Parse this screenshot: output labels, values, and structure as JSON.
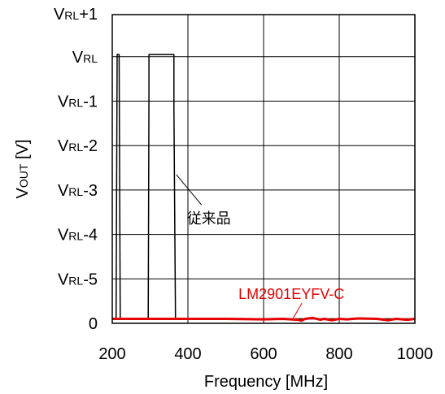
{
  "chart_data": {
    "type": "line",
    "title": "",
    "xlabel": "Frequency  [MHz]",
    "ylabel": {
      "main": "V",
      "sub": "OUT",
      "unit": "  [V]"
    },
    "xlim": [
      200,
      1000
    ],
    "ylim": [
      0,
      6
    ],
    "x_ticks": [
      {
        "value": 200,
        "label": "200"
      },
      {
        "value": 400,
        "label": "400"
      },
      {
        "value": 600,
        "label": "600"
      },
      {
        "value": 800,
        "label": "800"
      },
      {
        "value": 1000,
        "label": "1000"
      }
    ],
    "y_ticks": [
      {
        "value": 0,
        "main": "0",
        "sub": "",
        "suffix": ""
      },
      {
        "value": 1,
        "main": "V",
        "sub": "RL",
        "suffix": "-5"
      },
      {
        "value": 2,
        "main": "V",
        "sub": "RL",
        "suffix": "-4"
      },
      {
        "value": 3,
        "main": "V",
        "sub": "RL",
        "suffix": "-3"
      },
      {
        "value": 4,
        "main": "V",
        "sub": "RL",
        "suffix": "-2"
      },
      {
        "value": 5,
        "main": "V",
        "sub": "RL",
        "suffix": "-1"
      },
      {
        "value": 6,
        "main": "V",
        "sub": "RL",
        "suffix": ""
      },
      {
        "value": 7,
        "main": "V",
        "sub": "RL",
        "suffix": "+1"
      }
    ],
    "grid": true,
    "series": [
      {
        "name": "従来品",
        "color": "#000000",
        "points": [
          [
            200,
            0.1
          ],
          [
            210,
            0.1
          ],
          [
            213,
            6.05
          ],
          [
            218,
            6.05
          ],
          [
            221,
            0.1
          ],
          [
            290,
            0.1
          ],
          [
            295,
            0.1
          ],
          [
            297,
            5.1
          ],
          [
            297,
            6.05
          ],
          [
            363,
            6.05
          ],
          [
            363,
            4.8
          ],
          [
            367,
            0.1
          ],
          [
            1000,
            0.1
          ]
        ]
      },
      {
        "name": "LM2901EYFV-C",
        "color": "#e60000",
        "points": [
          [
            200,
            0.1
          ],
          [
            300,
            0.1
          ],
          [
            400,
            0.1
          ],
          [
            500,
            0.1
          ],
          [
            600,
            0.09
          ],
          [
            650,
            0.1
          ],
          [
            690,
            0.08
          ],
          [
            700,
            0.06
          ],
          [
            710,
            0.1
          ],
          [
            730,
            0.12
          ],
          [
            750,
            0.08
          ],
          [
            760,
            0.1
          ],
          [
            780,
            0.07
          ],
          [
            800,
            0.1
          ],
          [
            820,
            0.09
          ],
          [
            850,
            0.11
          ],
          [
            900,
            0.1
          ],
          [
            930,
            0.07
          ],
          [
            950,
            0.1
          ],
          [
            980,
            0.08
          ],
          [
            1000,
            0.1
          ]
        ]
      }
    ],
    "annotations": [
      {
        "text": "従来品",
        "series": 0,
        "point_at": [
          365,
          3.2
        ],
        "label_at": [
          410,
          2.3
        ]
      },
      {
        "text": "LM2901EYFV-C",
        "series": 1,
        "point_at": [
          700,
          0.12
        ],
        "label_at": [
          710,
          0.6
        ]
      }
    ]
  }
}
